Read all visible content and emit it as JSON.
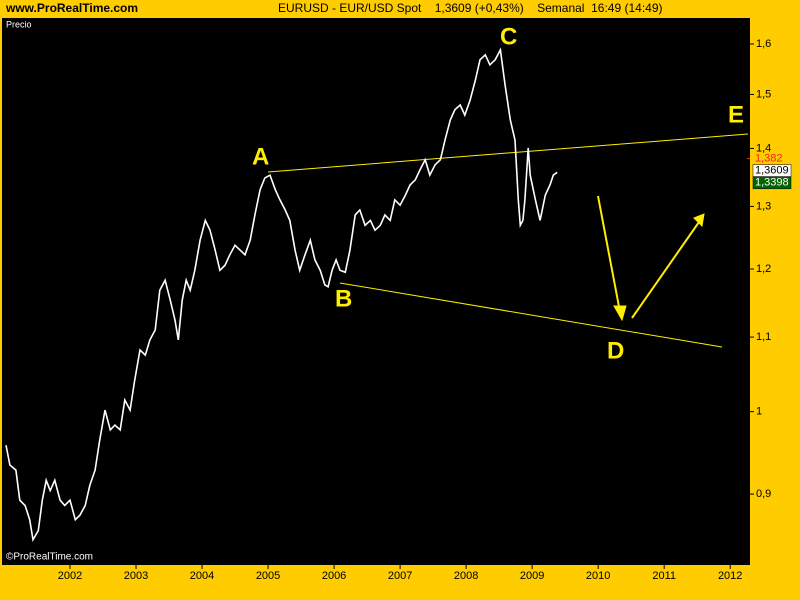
{
  "chart_data": {
    "type": "line",
    "source": "www.ProRealTime.com",
    "title": "EURUSD - EUR/USD Spot    1,3609 (+0,43%)    Semanal  16:49 (14:49)",
    "y_label": "Precio",
    "watermark": "©ProRealTime.com",
    "annotations": [
      "A",
      "B",
      "C",
      "D",
      "E"
    ],
    "log_scale": true,
    "grid": false,
    "color": "#ffffff",
    "x": [
      2001.03,
      2001.09,
      2001.18,
      2001.24,
      2001.32,
      2001.39,
      2001.44,
      2001.52,
      2001.58,
      2001.64,
      2001.7,
      2001.77,
      2001.85,
      2001.92,
      2002.0,
      2002.08,
      2002.15,
      2002.23,
      2002.3,
      2002.38,
      2002.45,
      2002.53,
      2002.61,
      2002.68,
      2002.76,
      2002.83,
      2002.91,
      2002.98,
      2003.06,
      2003.14,
      2003.21,
      2003.29,
      2003.36,
      2003.44,
      2003.52,
      2003.59,
      2003.64,
      2003.7,
      2003.76,
      2003.82,
      2003.89,
      2003.97,
      2004.05,
      2004.12,
      2004.2,
      2004.27,
      2004.35,
      2004.42,
      2004.5,
      2004.58,
      2004.65,
      2004.73,
      2004.8,
      2004.88,
      2004.95,
      2005.03,
      2005.11,
      2005.18,
      2005.26,
      2005.33,
      2005.41,
      2005.48,
      2005.56,
      2005.64,
      2005.71,
      2005.79,
      2005.86,
      2005.91,
      2005.97,
      2006.03,
      2006.09,
      2006.17,
      2006.24,
      2006.32,
      2006.39,
      2006.47,
      2006.55,
      2006.62,
      2006.7,
      2006.77,
      2006.85,
      2006.92,
      2007.0,
      2007.08,
      2007.15,
      2007.23,
      2007.3,
      2007.38,
      2007.45,
      2007.53,
      2007.61,
      2007.68,
      2007.76,
      2007.83,
      2007.91,
      2007.98,
      2008.06,
      2008.14,
      2008.21,
      2008.29,
      2008.36,
      2008.44,
      2008.52,
      2008.59,
      2008.67,
      2008.74,
      2008.79,
      2008.82,
      2008.86,
      2008.89,
      2008.94,
      2008.97,
      2009.05,
      2009.12,
      2009.2,
      2009.27,
      2009.32,
      2009.38
    ],
    "values": [
      0.958,
      0.934,
      0.928,
      0.893,
      0.887,
      0.871,
      0.849,
      0.859,
      0.893,
      0.916,
      0.904,
      0.916,
      0.893,
      0.887,
      0.893,
      0.871,
      0.876,
      0.887,
      0.91,
      0.928,
      0.964,
      1.002,
      0.977,
      0.983,
      0.977,
      1.015,
      1.002,
      1.041,
      1.082,
      1.075,
      1.096,
      1.11,
      1.168,
      1.183,
      1.153,
      1.124,
      1.096,
      1.153,
      1.183,
      1.168,
      1.198,
      1.245,
      1.277,
      1.261,
      1.229,
      1.198,
      1.206,
      1.222,
      1.237,
      1.229,
      1.222,
      1.245,
      1.286,
      1.328,
      1.348,
      1.353,
      1.328,
      1.311,
      1.294,
      1.277,
      1.229,
      1.198,
      1.222,
      1.245,
      1.214,
      1.198,
      1.176,
      1.173,
      1.198,
      1.214,
      1.198,
      1.195,
      1.229,
      1.286,
      1.294,
      1.269,
      1.277,
      1.261,
      1.269,
      1.286,
      1.277,
      1.311,
      1.302,
      1.319,
      1.336,
      1.345,
      1.362,
      1.38,
      1.353,
      1.371,
      1.38,
      1.415,
      1.452,
      1.471,
      1.48,
      1.461,
      1.489,
      1.528,
      1.568,
      1.578,
      1.558,
      1.568,
      1.588,
      1.518,
      1.452,
      1.415,
      1.311,
      1.269,
      1.277,
      1.311,
      1.401,
      1.353,
      1.311,
      1.277,
      1.319,
      1.336,
      1.353,
      1.358
    ],
    "xlim": [
      2000.97,
      2012.3
    ],
    "xticks": [
      2002,
      2003,
      2004,
      2005,
      2006,
      2007,
      2008,
      2009,
      2010,
      2011,
      2012
    ],
    "ylim": [
      0.822,
      1.654
    ],
    "yticks": [
      {
        "value": 0.9,
        "label": "0,9"
      },
      1,
      {
        "value": 1.1,
        "label": "1,1"
      },
      {
        "value": 1.2,
        "label": "1,2"
      },
      {
        "value": 1.3,
        "label": "1,3"
      },
      {
        "value": 1.4,
        "label": "1,4"
      },
      {
        "value": 1.5,
        "label": "1,5"
      },
      {
        "value": 1.6,
        "label": "1,6"
      }
    ],
    "price_labels": [
      {
        "value": 1.382,
        "label": "1,382",
        "color": "#ff2020"
      },
      {
        "value": 1.3609,
        "label": "1,3609",
        "color": "#000000",
        "background": "#ffffff"
      },
      {
        "value": 1.3398,
        "label": "1,3398",
        "color": "#ffffff",
        "background": "#006400"
      }
    ]
  }
}
